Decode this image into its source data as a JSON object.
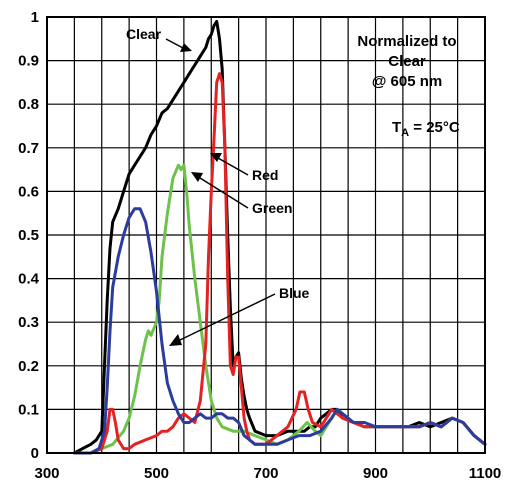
{
  "chart_data": {
    "type": "line",
    "xlim": [
      300,
      1100
    ],
    "ylim": [
      0,
      1
    ],
    "x_ticks": [
      "300",
      "500",
      "700",
      "900",
      "1100"
    ],
    "y_ticks": [
      "0",
      "0.1",
      "0.2",
      "0.3",
      "0.4",
      "0.5",
      "0.6",
      "0.7",
      "0.8",
      "0.9",
      "1"
    ],
    "grid": true,
    "annotations": {
      "normalized": [
        "Normalized to",
        "Clear",
        "@ 605 nm"
      ],
      "ta_main": "T",
      "ta_sub": "A",
      "ta_rest": " = 25°C"
    },
    "colors": {
      "Clear": "#000000",
      "Red": "#e52222",
      "Green": "#6cc24a",
      "Blue": "#2b3c9e"
    },
    "series": [
      {
        "name": "Clear",
        "x": [
          350,
          365,
          380,
          390,
          400,
          405,
          410,
          415,
          420,
          430,
          440,
          450,
          460,
          470,
          480,
          490,
          500,
          510,
          520,
          530,
          540,
          550,
          560,
          570,
          580,
          590,
          595,
          600,
          605,
          610,
          615,
          620,
          625,
          630,
          635,
          640,
          645,
          650,
          655,
          660,
          665,
          670,
          680,
          700,
          720,
          740,
          760,
          770,
          780,
          790,
          800,
          810,
          820,
          830,
          840,
          860,
          880,
          900,
          920,
          940,
          960,
          980,
          1000,
          1020,
          1040,
          1060,
          1080,
          1100
        ],
        "y": [
          0.0,
          0.01,
          0.02,
          0.03,
          0.05,
          0.2,
          0.35,
          0.47,
          0.53,
          0.56,
          0.6,
          0.64,
          0.66,
          0.68,
          0.7,
          0.73,
          0.75,
          0.78,
          0.79,
          0.81,
          0.83,
          0.85,
          0.87,
          0.89,
          0.91,
          0.93,
          0.95,
          0.96,
          0.98,
          0.99,
          0.95,
          0.88,
          0.7,
          0.5,
          0.33,
          0.2,
          0.22,
          0.23,
          0.17,
          0.13,
          0.1,
          0.08,
          0.05,
          0.04,
          0.04,
          0.05,
          0.05,
          0.05,
          0.06,
          0.06,
          0.08,
          0.09,
          0.1,
          0.1,
          0.08,
          0.07,
          0.06,
          0.06,
          0.06,
          0.06,
          0.06,
          0.07,
          0.06,
          0.07,
          0.08,
          0.07,
          0.04,
          0.02
        ]
      },
      {
        "name": "Red",
        "x": [
          350,
          380,
          400,
          410,
          415,
          420,
          425,
          430,
          440,
          450,
          460,
          480,
          500,
          510,
          520,
          530,
          540,
          550,
          560,
          570,
          580,
          590,
          595,
          600,
          605,
          610,
          615,
          620,
          625,
          630,
          635,
          640,
          645,
          650,
          655,
          660,
          665,
          670,
          680,
          690,
          700,
          720,
          740,
          755,
          762,
          770,
          777,
          785,
          800,
          820,
          840,
          860,
          880,
          900,
          920,
          940,
          960,
          980,
          1000,
          1020,
          1040,
          1060,
          1080,
          1100
        ],
        "y": [
          0.0,
          0.0,
          0.01,
          0.05,
          0.1,
          0.1,
          0.07,
          0.03,
          0.01,
          0.01,
          0.02,
          0.03,
          0.04,
          0.05,
          0.05,
          0.06,
          0.08,
          0.09,
          0.08,
          0.07,
          0.12,
          0.25,
          0.45,
          0.6,
          0.72,
          0.85,
          0.87,
          0.85,
          0.7,
          0.4,
          0.2,
          0.18,
          0.22,
          0.22,
          0.15,
          0.08,
          0.05,
          0.03,
          0.02,
          0.02,
          0.02,
          0.04,
          0.06,
          0.1,
          0.14,
          0.14,
          0.1,
          0.07,
          0.06,
          0.1,
          0.08,
          0.07,
          0.06,
          0.06,
          0.06,
          0.06,
          0.06,
          0.06,
          0.07,
          0.06,
          0.08,
          0.07,
          0.04,
          0.02
        ]
      },
      {
        "name": "Green",
        "x": [
          350,
          380,
          400,
          420,
          440,
          450,
          460,
          470,
          480,
          485,
          490,
          500,
          505,
          510,
          520,
          530,
          540,
          545,
          550,
          555,
          560,
          570,
          580,
          590,
          600,
          610,
          620,
          640,
          660,
          680,
          700,
          720,
          740,
          760,
          775,
          790,
          800,
          820,
          830,
          840,
          860,
          880,
          900,
          920,
          940,
          960,
          980,
          1000,
          1020,
          1040,
          1060,
          1080,
          1100
        ],
        "y": [
          0.0,
          0.0,
          0.01,
          0.02,
          0.05,
          0.08,
          0.13,
          0.2,
          0.26,
          0.28,
          0.27,
          0.3,
          0.35,
          0.45,
          0.55,
          0.63,
          0.66,
          0.65,
          0.66,
          0.6,
          0.52,
          0.4,
          0.3,
          0.2,
          0.12,
          0.08,
          0.06,
          0.05,
          0.05,
          0.04,
          0.03,
          0.02,
          0.03,
          0.05,
          0.07,
          0.05,
          0.04,
          0.08,
          0.1,
          0.09,
          0.07,
          0.06,
          0.06,
          0.06,
          0.06,
          0.06,
          0.06,
          0.07,
          0.06,
          0.08,
          0.07,
          0.04,
          0.02
        ]
      },
      {
        "name": "Blue",
        "x": [
          350,
          380,
          395,
          405,
          410,
          415,
          420,
          430,
          440,
          450,
          460,
          470,
          480,
          490,
          500,
          510,
          520,
          530,
          540,
          550,
          560,
          570,
          580,
          590,
          600,
          610,
          620,
          630,
          640,
          650,
          660,
          670,
          680,
          700,
          720,
          740,
          760,
          780,
          800,
          820,
          830,
          840,
          860,
          880,
          900,
          920,
          940,
          960,
          980,
          1000,
          1020,
          1040,
          1060,
          1080,
          1100
        ],
        "y": [
          0.0,
          0.0,
          0.01,
          0.05,
          0.15,
          0.28,
          0.38,
          0.45,
          0.5,
          0.54,
          0.56,
          0.56,
          0.53,
          0.46,
          0.37,
          0.25,
          0.16,
          0.12,
          0.09,
          0.07,
          0.07,
          0.08,
          0.09,
          0.08,
          0.08,
          0.09,
          0.09,
          0.08,
          0.08,
          0.07,
          0.04,
          0.03,
          0.02,
          0.02,
          0.02,
          0.03,
          0.04,
          0.04,
          0.05,
          0.08,
          0.1,
          0.09,
          0.07,
          0.07,
          0.06,
          0.06,
          0.06,
          0.06,
          0.06,
          0.07,
          0.06,
          0.08,
          0.07,
          0.04,
          0.02
        ]
      }
    ]
  }
}
